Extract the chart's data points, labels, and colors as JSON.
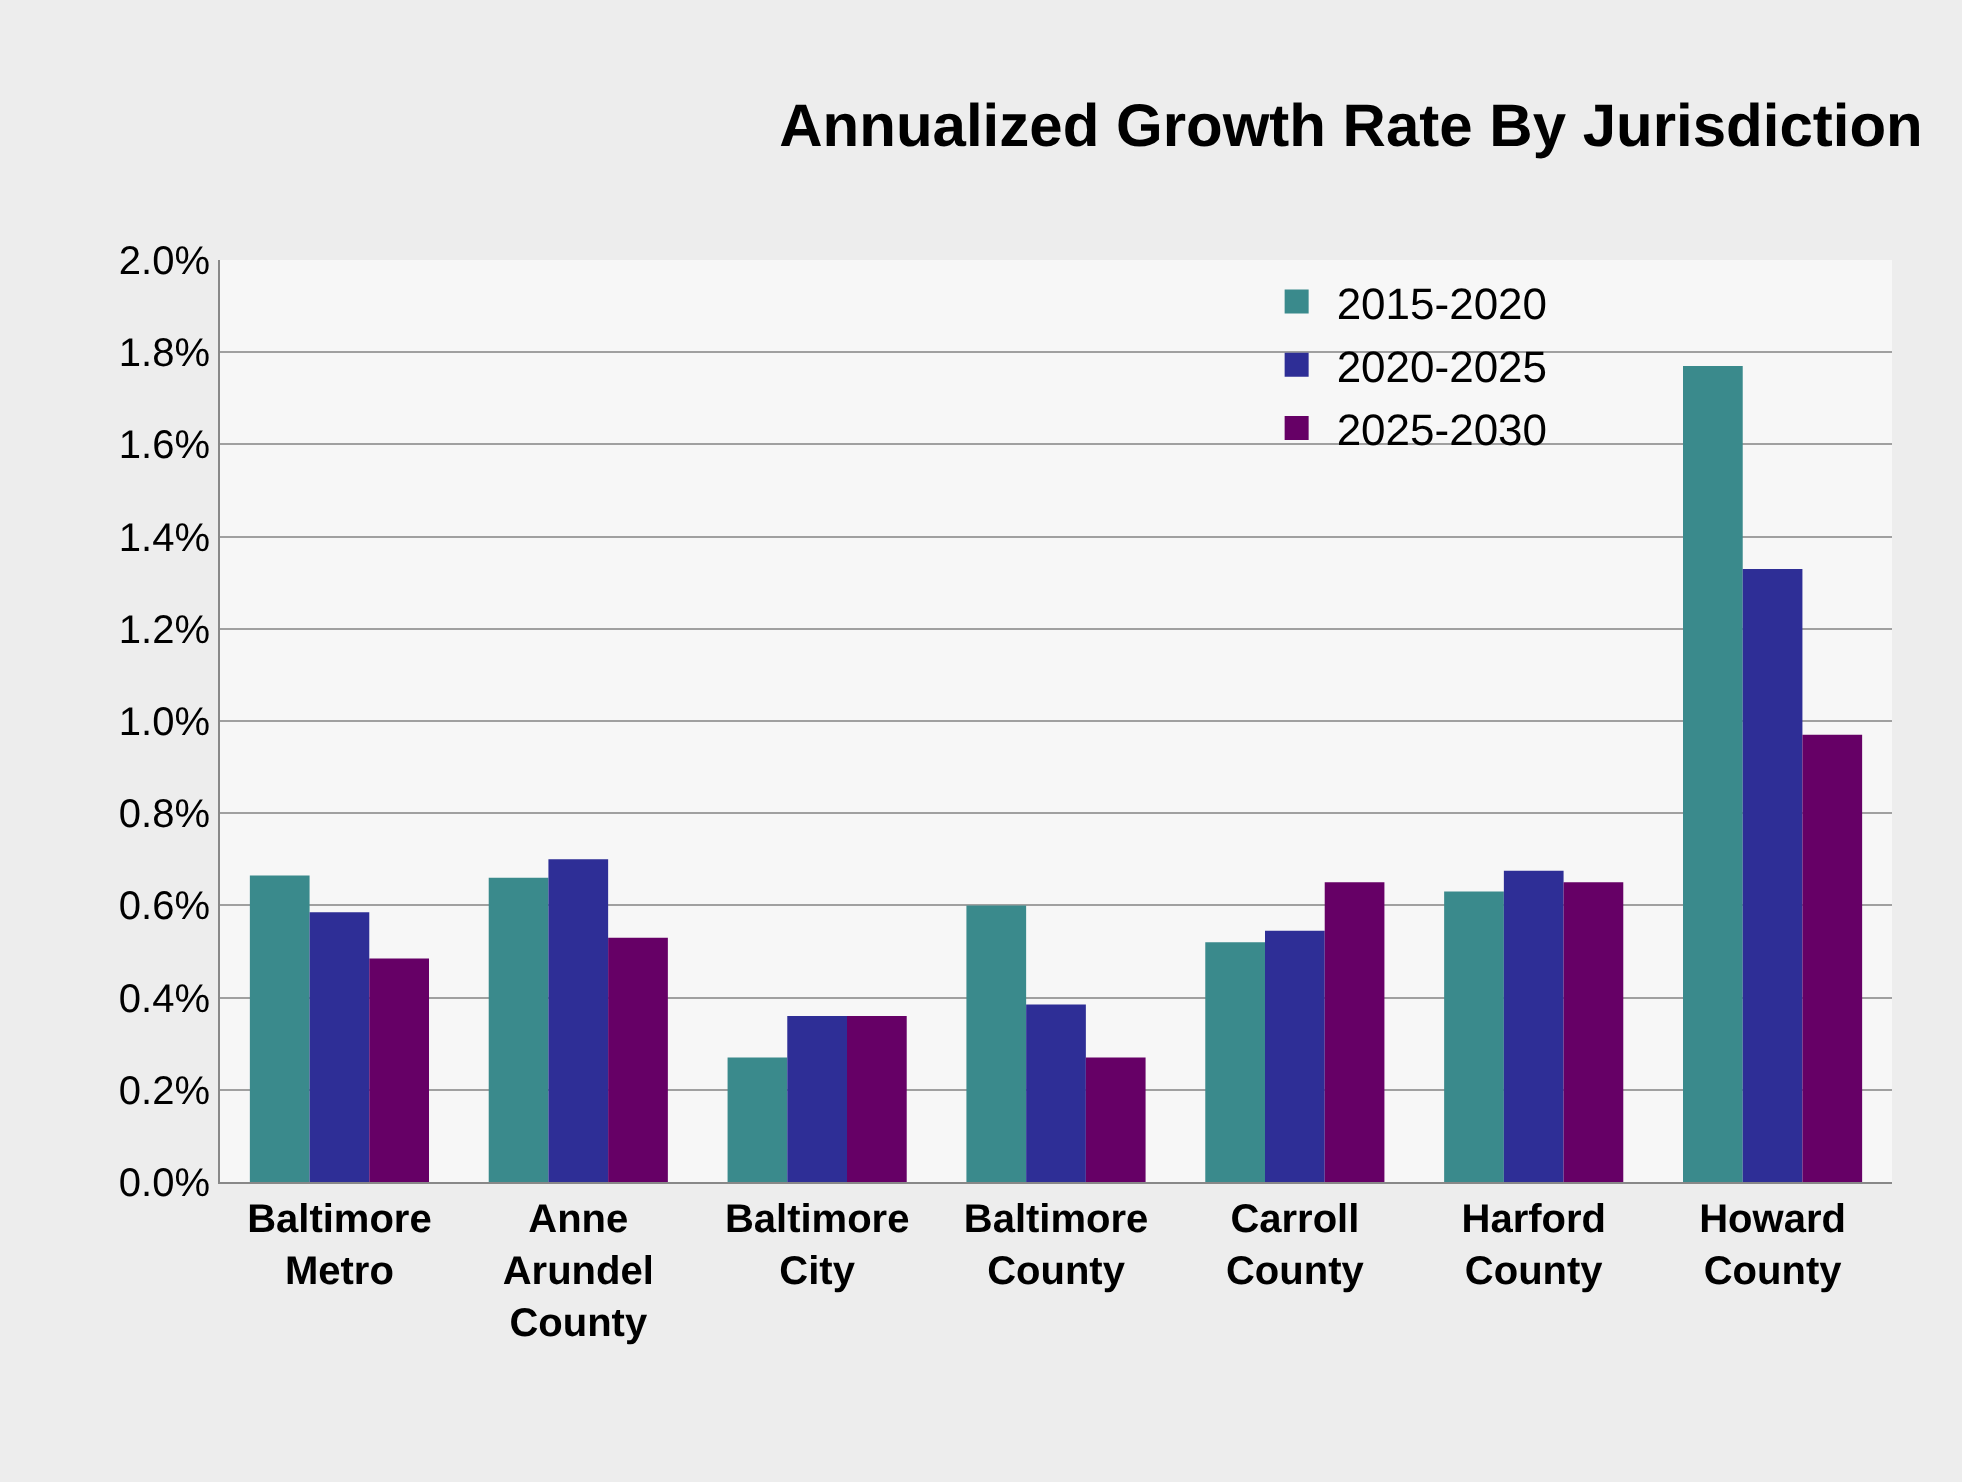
{
  "chart_data": {
    "type": "bar",
    "title": "Annualized Growth Rate By Jurisdiction",
    "categories": [
      "Baltimore Metro",
      "Anne Arundel County",
      "Baltimore City",
      "Baltimore County",
      "Carroll County",
      "Harford County",
      "Howard County"
    ],
    "series": [
      {
        "name": "2015-2020",
        "color": "#3a8a8c",
        "values": [
          0.665,
          0.66,
          0.27,
          0.6,
          0.52,
          0.63,
          1.77
        ]
      },
      {
        "name": "2020-2025",
        "color": "#2e2e96",
        "values": [
          0.585,
          0.7,
          0.36,
          0.385,
          0.545,
          0.675,
          1.33
        ]
      },
      {
        "name": "2025-2030",
        "color": "#660066",
        "values": [
          0.485,
          0.53,
          0.36,
          0.27,
          0.65,
          0.65,
          0.97
        ]
      }
    ],
    "ylim": [
      0,
      2.0
    ],
    "yticks": [
      {
        "value": 0,
        "label": "0.0%"
      },
      {
        "value": 0.2,
        "label": "0.2%"
      },
      {
        "value": 0.4,
        "label": "0.4%"
      },
      {
        "value": 0.6,
        "label": "0.6%"
      },
      {
        "value": 0.8,
        "label": "0.8%"
      },
      {
        "value": 1.0,
        "label": "1.0%"
      },
      {
        "value": 1.2,
        "label": "1.2%"
      },
      {
        "value": 1.4,
        "label": "1.4%"
      },
      {
        "value": 1.6,
        "label": "1.6%"
      },
      {
        "value": 1.8,
        "label": "1.8%"
      },
      {
        "value": 2.0,
        "label": "2.0%"
      }
    ],
    "grid": "y",
    "legend": "top right"
  }
}
